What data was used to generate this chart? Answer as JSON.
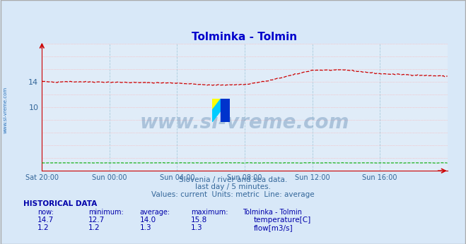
{
  "title": "Tolminka - Tolmin",
  "title_color": "#0000cc",
  "bg_color": "#d8e8f8",
  "plot_bg_color": "#e0ecf8",
  "grid_color_h": "#ffaaaa",
  "grid_color_v": "#aaccdd",
  "xlabel_color": "#336699",
  "ylabel_color": "#336699",
  "axis_color": "#cc0000",
  "subtitle_lines": [
    "Slovenia / river and sea data.",
    "last day / 5 minutes.",
    "Values: current  Units: metric  Line: average"
  ],
  "subtitle_color": "#336699",
  "watermark_text": "www.si-vreme.com",
  "watermark_color": "#336699",
  "watermark_alpha": 0.3,
  "xtick_labels": [
    "Sat 20:00",
    "Sun 00:00",
    "Sun 04:00",
    "Sun 08:00",
    "Sun 12:00",
    "Sun 16:00"
  ],
  "xtick_positions": [
    0,
    240,
    480,
    720,
    960,
    1200
  ],
  "ylim": [
    0,
    20
  ],
  "xlim": [
    0,
    1440
  ],
  "temp_color": "#cc0000",
  "flow_color": "#00aa00",
  "hist_title": "HISTORICAL DATA",
  "hist_color": "#0000aa",
  "hist_headers": [
    "now:",
    "minimum:",
    "average:",
    "maximum:",
    "Tolminka - Tolmin"
  ],
  "hist_temp_row": [
    "14.7",
    "12.7",
    "14.0",
    "15.8",
    "temperature[C]"
  ],
  "hist_flow_row": [
    "1.2",
    "1.2",
    "1.3",
    "1.3",
    "flow[m3/s]"
  ],
  "sidebar_text": "www.si-vreme.com",
  "sidebar_color": "#0055aa"
}
